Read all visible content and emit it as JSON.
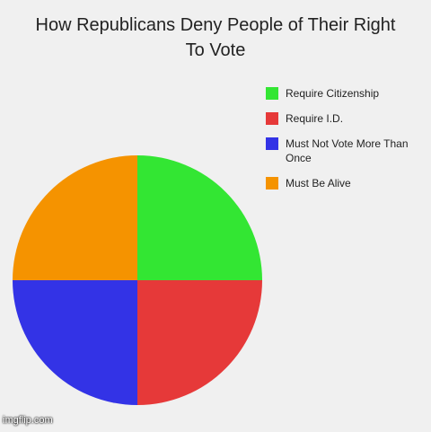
{
  "chart_data": {
    "type": "pie",
    "title": "How Republicans Deny People of Their Right To Vote",
    "categories": [
      "Require Citizenship",
      "Require I.D.",
      "Must Not Vote More Than Once",
      "Must Be Alive"
    ],
    "values": [
      25,
      25,
      25,
      25
    ],
    "colors": [
      "#33e633",
      "#e63939",
      "#3333e6",
      "#f59300"
    ],
    "watermark": "imgflip.com"
  }
}
